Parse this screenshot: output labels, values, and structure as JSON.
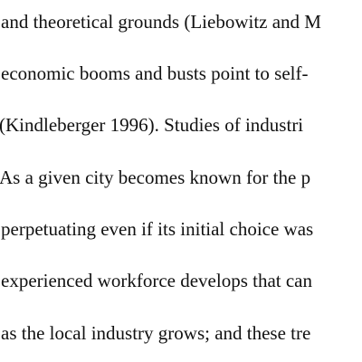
{
  "document": {
    "lines": [
      "and theoretical grounds (Liebowitz and M",
      "economic booms and busts point to self-",
      "(Kindleberger 1996).  Studies of industri",
      "As a given city becomes known for the p",
      "perpetuating even if its initial choice was",
      "experienced workforce develops that can",
      "as the local industry grows; and these tre"
    ]
  }
}
